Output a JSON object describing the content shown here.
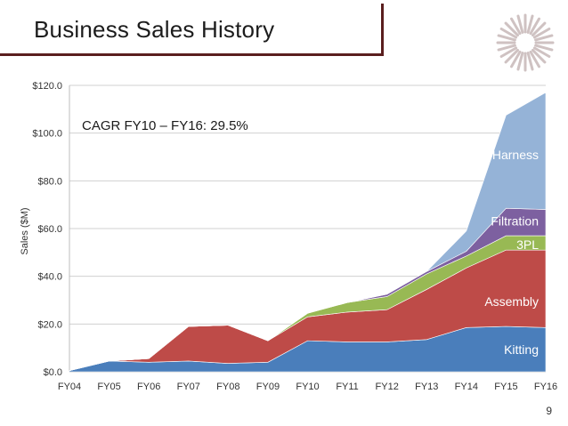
{
  "slide": {
    "title": "Business Sales History",
    "page_number": "9"
  },
  "chart_data": {
    "type": "area",
    "stacked": true,
    "title": "",
    "xlabel": "",
    "ylabel": "Sales ($M)",
    "ylim": [
      0,
      120
    ],
    "yticks": [
      "$0.0",
      "$20.0",
      "$40.0",
      "$60.0",
      "$80.0",
      "$100.0",
      "$120.0"
    ],
    "ytick_values": [
      0,
      20,
      40,
      60,
      80,
      100,
      120
    ],
    "categories": [
      "FY04",
      "FY05",
      "FY06",
      "FY07",
      "FY08",
      "FY09",
      "FY10",
      "FY11",
      "FY12",
      "FY13",
      "FY14",
      "FY15",
      "FY16"
    ],
    "grid": true,
    "annotation": "CAGR FY10 – FY16:  29.5%",
    "series": [
      {
        "name": "Kitting",
        "color": "#4a7ebb",
        "values": [
          0.5,
          4.5,
          4.0,
          4.5,
          3.5,
          4.0,
          13.0,
          12.5,
          12.5,
          13.5,
          18.5,
          19.0,
          18.5
        ]
      },
      {
        "name": "Assembly",
        "color": "#be4b48",
        "values": [
          0,
          0,
          1.5,
          14.5,
          16.0,
          9.0,
          10.0,
          12.5,
          13.5,
          21.0,
          25.0,
          32.0,
          32.5
        ]
      },
      {
        "name": "3PL",
        "color": "#98b954",
        "values": [
          0,
          0,
          0,
          0,
          0,
          0,
          1.5,
          4.0,
          5.5,
          6.5,
          5.0,
          6.0,
          6.0
        ]
      },
      {
        "name": "Filtration",
        "color": "#7d60a0",
        "values": [
          0,
          0,
          0,
          0,
          0,
          0,
          0,
          0,
          1.0,
          1.0,
          2.0,
          11.5,
          11.0
        ]
      },
      {
        "name": "Harness",
        "color": "#95b3d7",
        "values": [
          0,
          0,
          0,
          0,
          0,
          0,
          0,
          0,
          0,
          0,
          8.5,
          39.0,
          49.0
        ]
      }
    ]
  }
}
